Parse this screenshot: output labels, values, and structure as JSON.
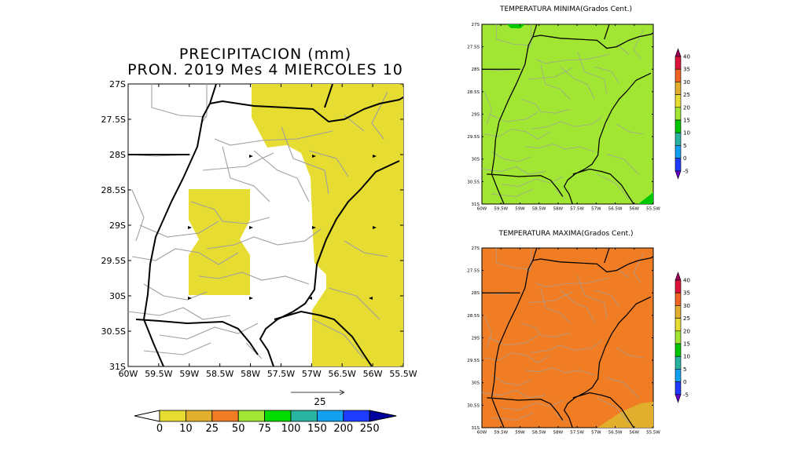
{
  "precip_map": {
    "title_line1": "PRECIPITACION (mm)",
    "title_line2": "PRON. 2019 Mes 4 MIERCOLES 10",
    "lat_labels": [
      "27S",
      "27.5S",
      "28S",
      "28.5S",
      "29S",
      "29.5S",
      "30S",
      "30.5S",
      "31S"
    ],
    "lon_labels": [
      "60W",
      "59.5W",
      "59W",
      "58.5W",
      "58W",
      "57.5W",
      "57W",
      "56.5W",
      "56W",
      "55.5W"
    ],
    "vector_reference": "25",
    "colorbar_labels": [
      "0",
      "10",
      "25",
      "50",
      "75",
      "100",
      "150",
      "200",
      "250"
    ],
    "colorbar_colors": [
      "#e6dc32",
      "#e1af2d",
      "#f07d23",
      "#a0e632",
      "#00dc00",
      "#28b4a0",
      "#14a0f0",
      "#1e3cff",
      "#0000a0"
    ]
  },
  "tmin_map": {
    "title": "TEMPERATURA MINIMA(Grados Cent.)",
    "fill_color": "#a0e632",
    "lat_labels": [
      "27S",
      "27.5S",
      "28S",
      "28.5S",
      "29S",
      "29.5S",
      "30S",
      "30.5S",
      "31S"
    ],
    "lon_labels": [
      "60W",
      "59.5W",
      "59W",
      "58.5W",
      "58W",
      "57.5W",
      "57W",
      "56.5W",
      "56W",
      "55.5W"
    ],
    "colorbar_labels": [
      "40",
      "35",
      "30",
      "25",
      "20",
      "15",
      "10",
      "5",
      "0",
      "-5"
    ]
  },
  "tmax_map": {
    "title": "TEMPERATURA MAXIMA(Grados Cent.)",
    "fill_color": "#f07d23",
    "lat_labels": [
      "27S",
      "27.5S",
      "28S",
      "28.5S",
      "29S",
      "29.5S",
      "30S",
      "30.5S",
      "31S"
    ],
    "lon_labels": [
      "60W",
      "59.5W",
      "59W",
      "58.5W",
      "58W",
      "57.5W",
      "57W",
      "56.5W",
      "56W",
      "55.5W"
    ],
    "colorbar_labels": [
      "40",
      "35",
      "30",
      "25",
      "20",
      "15",
      "10",
      "5",
      "0",
      "-5"
    ]
  },
  "temp_colorbar_colors": [
    "#a0005a",
    "#dc143c",
    "#f06423",
    "#e1af2d",
    "#e6dc32",
    "#a0e632",
    "#00c800",
    "#28b4a0",
    "#14a0f0",
    "#1e3cff",
    "#6400c8"
  ]
}
